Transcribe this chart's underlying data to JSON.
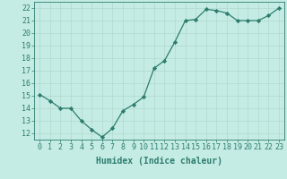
{
  "x": [
    0,
    1,
    2,
    3,
    4,
    5,
    6,
    7,
    8,
    9,
    10,
    11,
    12,
    13,
    14,
    15,
    16,
    17,
    18,
    19,
    20,
    21,
    22,
    23
  ],
  "y": [
    15.1,
    14.6,
    14.0,
    14.0,
    13.0,
    12.3,
    11.7,
    12.4,
    13.8,
    14.3,
    14.9,
    17.2,
    17.8,
    19.3,
    21.0,
    21.1,
    21.9,
    21.8,
    21.6,
    21.0,
    21.0,
    21.0,
    21.4,
    22.0
  ],
  "line_color": "#2d7d6e",
  "marker": "D",
  "marker_size": 2.2,
  "bg_color": "#c5ece4",
  "grid_major_color": "#b0d8ce",
  "grid_minor_color": "#c0e4dc",
  "xlabel": "Humidex (Indice chaleur)",
  "tick_color": "#2d7d6e",
  "ylim": [
    11.5,
    22.5
  ],
  "xlim": [
    -0.5,
    23.5
  ],
  "yticks": [
    12,
    13,
    14,
    15,
    16,
    17,
    18,
    19,
    20,
    21,
    22
  ],
  "xticks": [
    0,
    1,
    2,
    3,
    4,
    5,
    6,
    7,
    8,
    9,
    10,
    11,
    12,
    13,
    14,
    15,
    16,
    17,
    18,
    19,
    20,
    21,
    22,
    23
  ],
  "line_width": 0.9,
  "tick_fontsize": 6.0,
  "xlabel_fontsize": 7.0
}
